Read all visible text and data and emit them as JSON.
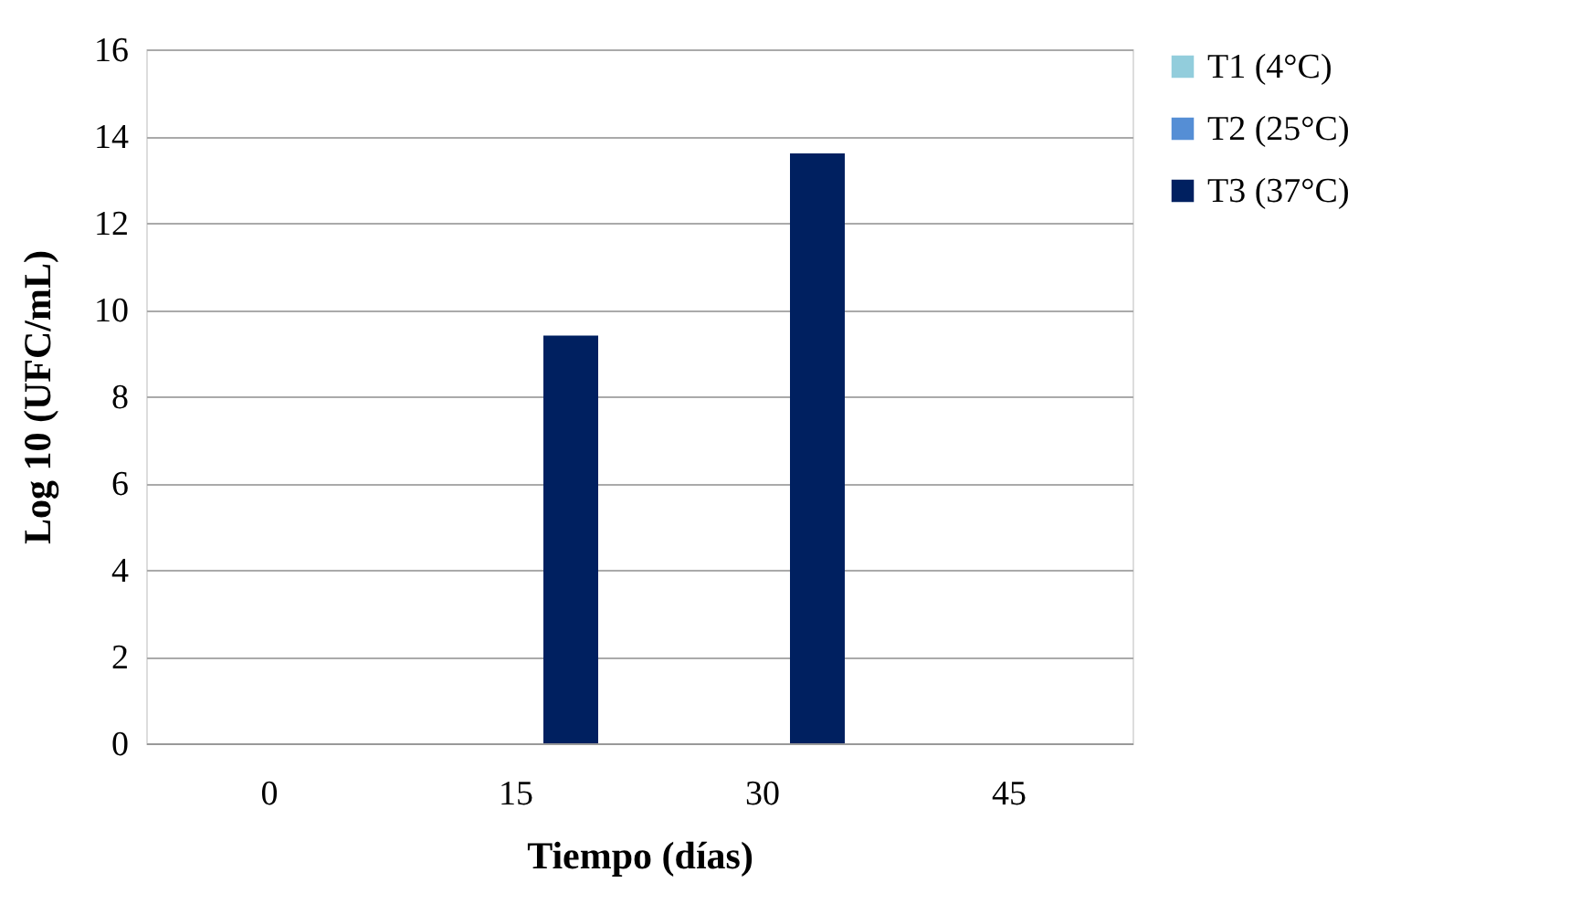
{
  "chart_data": {
    "type": "bar",
    "xlabel": "Tiempo (días)",
    "ylabel": "Log 10 (UFC/mL)",
    "categories": [
      "0",
      "15",
      "30",
      "45"
    ],
    "series": [
      {
        "name": "T1 (4°C)",
        "color": "#92cddc",
        "values": [
          0,
          0,
          0,
          0
        ]
      },
      {
        "name": "T2 (25°C)",
        "color": "#558ed5",
        "values": [
          0,
          0,
          0,
          0
        ]
      },
      {
        "name": "T3 (37°C)",
        "color": "#002060",
        "values": [
          0,
          9.4,
          13.6,
          0
        ]
      }
    ],
    "ylim": [
      0,
      16
    ],
    "yticks": [
      0,
      2,
      4,
      6,
      8,
      10,
      12,
      14,
      16
    ],
    "grid": "y",
    "legend": "right"
  }
}
